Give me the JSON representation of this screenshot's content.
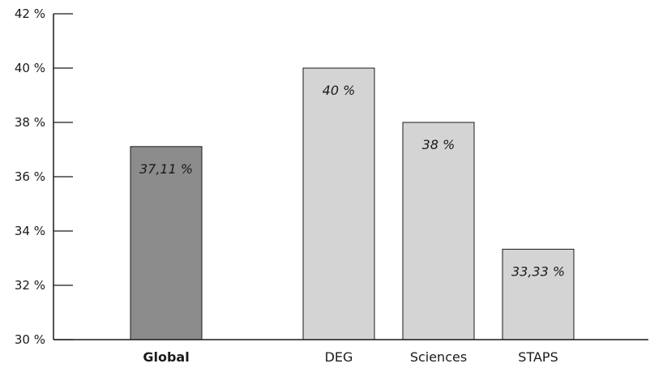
{
  "chart_data": {
    "type": "bar",
    "title": "",
    "xlabel": "",
    "ylabel": "",
    "ylim": [
      30,
      42
    ],
    "yticks": [
      30,
      32,
      34,
      36,
      38,
      40,
      42
    ],
    "ytick_labels": [
      "30 %",
      "32 %",
      "34 %",
      "36 %",
      "38 %",
      "40 %",
      "42 %"
    ],
    "categories": [
      "Global",
      "DEG",
      "Sciences",
      "STAPS"
    ],
    "values": [
      37.11,
      40,
      38,
      33.33
    ],
    "data_labels": [
      "37,11 %",
      "40 %",
      "38 %",
      "33,33 %"
    ],
    "bar_colors": [
      "#8c8c8c",
      "#d4d4d4",
      "#d4d4d4",
      "#d4d4d4"
    ],
    "bold_categories": [
      "Global"
    ],
    "grid": false,
    "legend": "none"
  }
}
